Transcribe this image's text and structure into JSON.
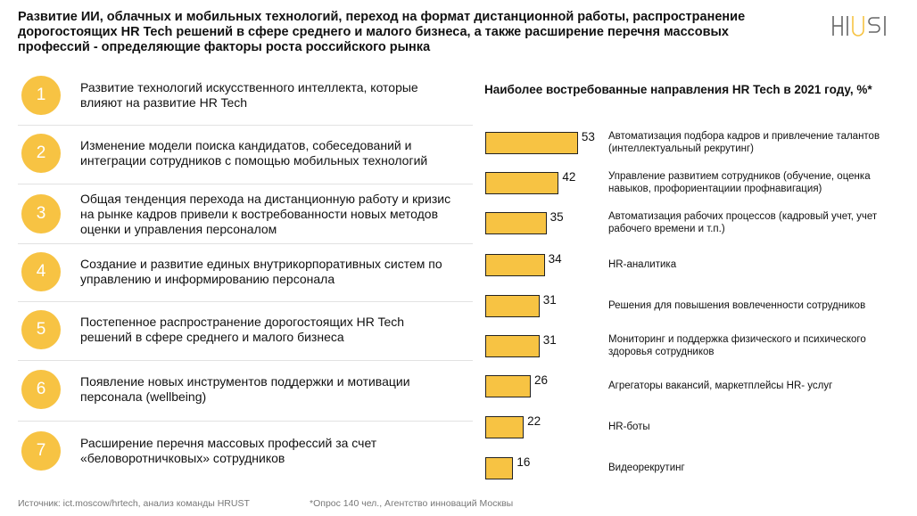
{
  "header": {
    "title": "Развитие ИИ, облачных и мобильных технологий, переход на формат дистанционной работы, распространение дорогостоящих HR Tech решений в сфере среднего и малого бизнеса, а также расширение перечня массовых профессий - определяющие факторы роста российского рынка"
  },
  "list": {
    "items": [
      {
        "number": "1",
        "text": "Развитие технологий искусственного интеллекта, которые влияют на развитие HR Tech"
      },
      {
        "number": "2",
        "text": "Изменение модели поиска кандидатов, собеседований и интеграции сотрудников с помощью мобильных технологий"
      },
      {
        "number": "3",
        "text": "Общая тенденция перехода на дистанционную работу и кризис на рынке кадров привели к востребованности новых методов оценки и управления персоналом"
      },
      {
        "number": "4",
        "text": "Создание и развитие единых внутрикорпоративных систем по управлению и информированию персонала"
      },
      {
        "number": "5",
        "text": "Постепенное распространение дорогостоящих HR Tech решений в сфере среднего и малого бизнеса"
      },
      {
        "number": "6",
        "text": "Появление новых инструментов поддержки и мотивации персонала (wellbeing)"
      },
      {
        "number": "7",
        "text": "Расширение перечня массовых профессий за счет «беловоротничковых» сотрудников"
      }
    ]
  },
  "chart_data": {
    "type": "bar",
    "orientation": "horizontal",
    "title": "Наиболее востребованные направления HR Tech в 2021 году, %*",
    "categories": [
      "Автоматизация подбора кадров и привлечение талантов (интеллектуальный рекрутинг)",
      "Управление развитием сотрудников (обучение, оценка навыков, профориентациии профнавигация)",
      "Автоматизация рабочих процессов (кадровый учет, учет рабочего времени и т.п.)",
      "HR-аналитика",
      "Решения для повышения вовлеченности сотрудников",
      "Мониторинг и поддержка физического и психического здоровья сотрудников",
      "Агрегаторы вакансий, маркетплейсы HR- услуг",
      "HR-боты",
      "Видеорекрутинг"
    ],
    "values": [
      53,
      42,
      35,
      34,
      31,
      31,
      26,
      22,
      16
    ],
    "color": "#f7c343"
  },
  "footer": {
    "source": "Источник: ict.moscow/hrtech, анализ команды HRUST",
    "note": "*Опрос 140 чел., Агентство инноваций Москвы"
  }
}
